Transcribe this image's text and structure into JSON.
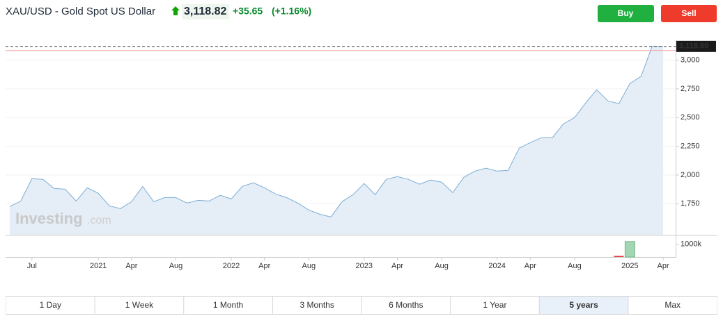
{
  "header": {
    "title": "XAU/USD - Gold Spot US Dollar",
    "price": "3,118.82",
    "change": "+35.65",
    "change_pct": "(+1.16%)",
    "buy": "Buy",
    "sell": "Sell",
    "watermark": "Investing",
    "watermark_suffix": ".com"
  },
  "tabs": {
    "items": [
      "1 Day",
      "1 Week",
      "1 Month",
      "3 Months",
      "6 Months",
      "1 Year",
      "5 years",
      "Max"
    ],
    "active": 6
  },
  "chart_data": [
    {
      "type": "area",
      "color": "#7aaed6",
      "fill": "#e5edf6",
      "grid": true,
      "categories": [
        null,
        null,
        "Jul",
        null,
        null,
        null,
        null,
        null,
        "2021",
        null,
        null,
        "Apr",
        null,
        null,
        null,
        "Aug",
        null,
        null,
        null,
        null,
        "2022",
        null,
        null,
        "Apr",
        null,
        null,
        null,
        "Aug",
        null,
        null,
        null,
        null,
        "2023",
        null,
        null,
        "Apr",
        null,
        null,
        null,
        "Aug",
        null,
        null,
        null,
        null,
        "2024",
        null,
        null,
        "Apr",
        null,
        null,
        null,
        "Aug",
        null,
        null,
        null,
        null,
        "2025",
        null,
        null,
        "Apr"
      ],
      "values": [
        1726,
        1774,
        1968,
        1962,
        1883,
        1877,
        1774,
        1889,
        1841,
        1732,
        1708,
        1768,
        1901,
        1768,
        1804,
        1804,
        1756,
        1780,
        1774,
        1823,
        1792,
        1901,
        1932,
        1889,
        1835,
        1804,
        1756,
        1696,
        1659,
        1635,
        1768,
        1829,
        1926,
        1829,
        1962,
        1986,
        1962,
        1920,
        1956,
        1938,
        1847,
        1980,
        2034,
        2059,
        2034,
        2040,
        2234,
        2282,
        2325,
        2325,
        2446,
        2500,
        2627,
        2742,
        2645,
        2621,
        2797,
        2857,
        3118.8,
        3118.8
      ],
      "ylim": [
        1480,
        3160
      ],
      "yticks": [
        {
          "value": 1750,
          "label": "1,750"
        },
        {
          "value": 2000,
          "label": "2,000"
        },
        {
          "value": 2250,
          "label": "2,250"
        },
        {
          "value": 2500,
          "label": "2,500"
        },
        {
          "value": 2750,
          "label": "2,750"
        },
        {
          "value": 3000,
          "label": "3,000"
        }
      ],
      "last_price": {
        "value": 3118.8,
        "label": "3,118.80"
      },
      "reference_line": 3083.17
    },
    {
      "type": "bar",
      "values": [
        null,
        null,
        null,
        null,
        null,
        null,
        null,
        null,
        null,
        null,
        null,
        null,
        null,
        null,
        null,
        null,
        null,
        null,
        null,
        null,
        null,
        null,
        null,
        null,
        null,
        null,
        null,
        null,
        null,
        null,
        null,
        null,
        null,
        null,
        null,
        null,
        null,
        null,
        null,
        null,
        null,
        null,
        null,
        null,
        null,
        null,
        null,
        null,
        null,
        null,
        null,
        null,
        null,
        null,
        null,
        90000,
        1220000,
        null,
        null,
        null
      ],
      "colors": [
        null,
        null,
        null,
        null,
        null,
        null,
        null,
        null,
        null,
        null,
        null,
        null,
        null,
        null,
        null,
        null,
        null,
        null,
        null,
        null,
        null,
        null,
        null,
        null,
        null,
        null,
        null,
        null,
        null,
        null,
        null,
        null,
        null,
        null,
        null,
        null,
        null,
        null,
        null,
        null,
        null,
        null,
        null,
        null,
        null,
        null,
        null,
        null,
        null,
        null,
        null,
        null,
        null,
        null,
        null,
        "#e53935",
        "#a5d6b3",
        null,
        null,
        null
      ],
      "ylim": [
        0,
        1650000
      ],
      "yticks": [
        {
          "value": 1000000,
          "label": "1000k"
        }
      ]
    }
  ]
}
